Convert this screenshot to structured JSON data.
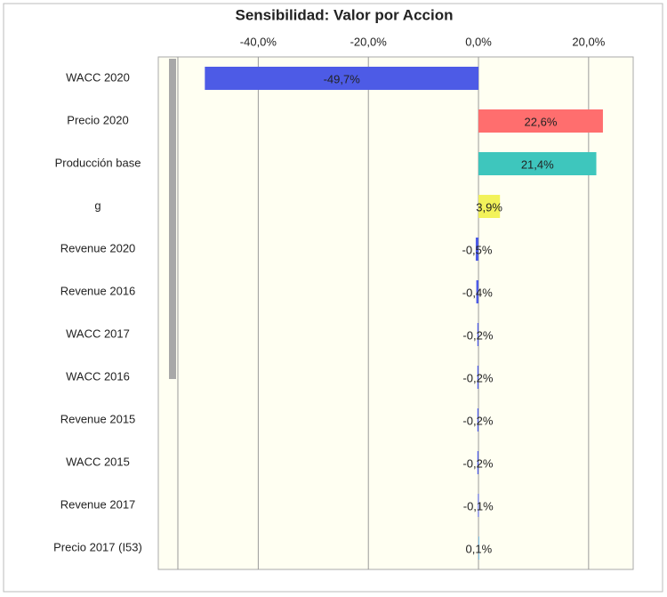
{
  "chart_data": {
    "type": "bar",
    "orientation": "horizontal",
    "title": "Sensibilidad: Valor por Accion",
    "categories": [
      "WACC 2020",
      "Precio 2020",
      "Producción base",
      "g",
      "Revenue 2020",
      "Revenue 2016",
      "WACC 2017",
      "WACC 2016",
      "Revenue 2015",
      "WACC 2015",
      "Revenue 2017",
      "Precio 2017 (I53)"
    ],
    "values": [
      -49.7,
      22.6,
      21.4,
      3.9,
      -0.5,
      -0.4,
      -0.2,
      -0.2,
      -0.2,
      -0.2,
      -0.1,
      0.1
    ],
    "value_labels": [
      "-49,7%",
      "22,6%",
      "21,4%",
      "3,9%",
      "-0,5%",
      "-0,4%",
      "-0,2%",
      "-0,2%",
      "-0,2%",
      "-0,2%",
      "-0,1%",
      "0,1%"
    ],
    "colors": [
      "#4d5be6",
      "#ff6e6e",
      "#3ec6bd",
      "#f2f25a",
      "#4d5be6",
      "#4d5be6",
      "#4d5be6",
      "#4d5be6",
      "#4d5be6",
      "#4d5be6",
      "#4d5be6",
      "#7fc4e8"
    ],
    "xlim": [
      -54.6,
      28.1
    ],
    "xticks": [
      {
        "value": -40,
        "label": "-40,0%"
      },
      {
        "value": -20,
        "label": "-20,0%"
      },
      {
        "value": 0,
        "label": "0,0%"
      },
      {
        "value": 20,
        "label": "20,0%"
      }
    ],
    "grid": true
  }
}
